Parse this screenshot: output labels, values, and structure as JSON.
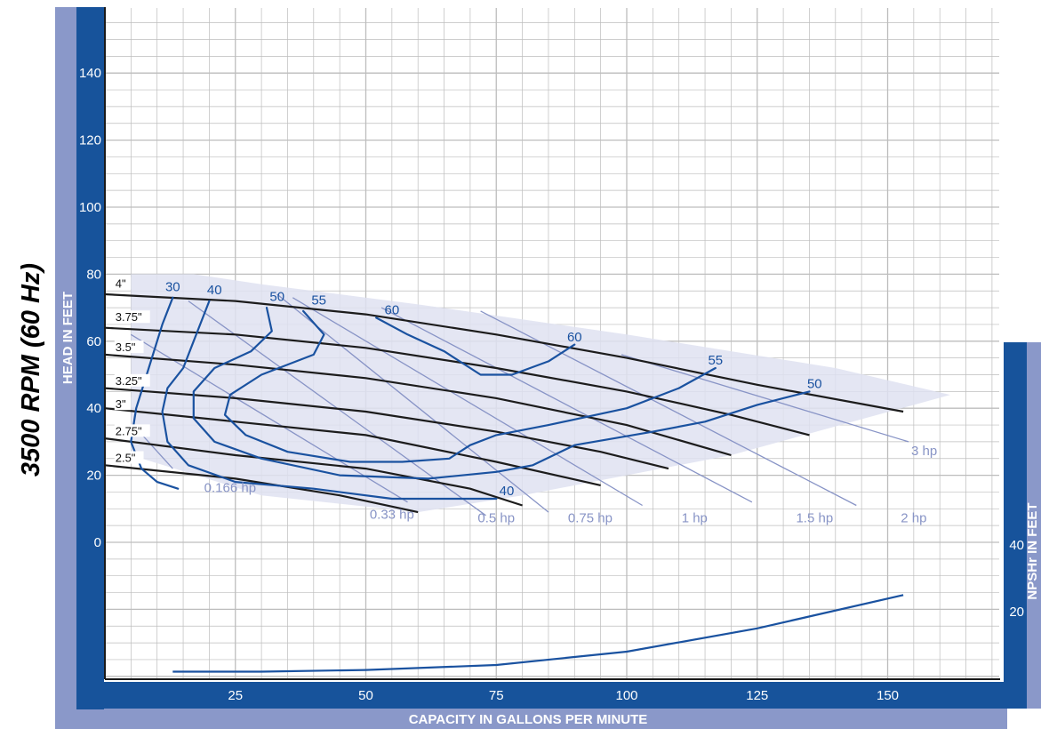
{
  "page": {
    "side_title": "3500 RPM (60 Hz)",
    "y_axis_label": "HEAD IN FEET",
    "x_axis_label": "CAPACITY IN GALLONS PER MINUTE",
    "npsh_axis_label": "NPSHr IN FEET",
    "colors": {
      "frame_dark": "#17539b",
      "frame_light": "#8a98c9",
      "curve_blue": "#1a52a0",
      "hp_line": "#8894c6",
      "region_fill": "#dfe2f1",
      "impeller": "#1c1c1c",
      "grid": "#bdbdbd"
    }
  },
  "chart_data": {
    "type": "line",
    "title": "3500 RPM (60 Hz)",
    "xlabel": "CAPACITY IN GALLONS PER MINUTE",
    "ylabel": "HEAD IN FEET",
    "xlim": [
      0,
      170
    ],
    "ylim": [
      -60,
      160
    ],
    "x_ticks": [
      "25",
      "50",
      "75",
      "100",
      "125",
      "150"
    ],
    "x_tick_values": [
      25,
      50,
      75,
      100,
      125,
      150
    ],
    "y_ticks": [
      "0",
      "20",
      "40",
      "60",
      "80",
      "100",
      "120",
      "140"
    ],
    "y_tick_values": [
      0,
      20,
      40,
      60,
      80,
      100,
      120,
      140
    ],
    "grid": true,
    "operating_region": [
      [
        5,
        80
      ],
      [
        17,
        80
      ],
      [
        30,
        77
      ],
      [
        60,
        71
      ],
      [
        100,
        62
      ],
      [
        140,
        52
      ],
      [
        162,
        44
      ],
      [
        120,
        26
      ],
      [
        80,
        14
      ],
      [
        60,
        9
      ],
      [
        30,
        14
      ],
      [
        5,
        26
      ]
    ],
    "impeller_curves": [
      {
        "name": "4\"",
        "points": [
          [
            0,
            74
          ],
          [
            25,
            72
          ],
          [
            50,
            68
          ],
          [
            75,
            62
          ],
          [
            100,
            55
          ],
          [
            125,
            47
          ],
          [
            153,
            39
          ]
        ]
      },
      {
        "name": "3.75\"",
        "points": [
          [
            0,
            64
          ],
          [
            25,
            62
          ],
          [
            50,
            58
          ],
          [
            75,
            52
          ],
          [
            100,
            45
          ],
          [
            120,
            38
          ],
          [
            135,
            32
          ]
        ]
      },
      {
        "name": "3.5\"",
        "points": [
          [
            0,
            56
          ],
          [
            25,
            53
          ],
          [
            50,
            49
          ],
          [
            75,
            43
          ],
          [
            100,
            35
          ],
          [
            120,
            26
          ]
        ]
      },
      {
        "name": "3.25\"",
        "points": [
          [
            0,
            46
          ],
          [
            25,
            43
          ],
          [
            50,
            39
          ],
          [
            75,
            33
          ],
          [
            95,
            27
          ],
          [
            108,
            22
          ]
        ]
      },
      {
        "name": "3\"",
        "points": [
          [
            0,
            40
          ],
          [
            25,
            36
          ],
          [
            50,
            32
          ],
          [
            75,
            24
          ],
          [
            95,
            17
          ]
        ]
      },
      {
        "name": "2.75\"",
        "points": [
          [
            0,
            31
          ],
          [
            25,
            26
          ],
          [
            50,
            22
          ],
          [
            70,
            16
          ],
          [
            80,
            11
          ]
        ]
      },
      {
        "name": "2.5\"",
        "points": [
          [
            0,
            23
          ],
          [
            25,
            19
          ],
          [
            45,
            14
          ],
          [
            60,
            9
          ]
        ]
      }
    ],
    "efficiency_curves": [
      {
        "name": "30",
        "points": [
          [
            13,
            73
          ],
          [
            11,
            65
          ],
          [
            8,
            50
          ],
          [
            6,
            40
          ],
          [
            5,
            30
          ],
          [
            7,
            22
          ],
          [
            10,
            18
          ],
          [
            14,
            16
          ]
        ]
      },
      {
        "name": "40",
        "points": [
          [
            20,
            72
          ],
          [
            17,
            60
          ],
          [
            15,
            52
          ],
          [
            12,
            46
          ],
          [
            11,
            39
          ],
          [
            12,
            30
          ],
          [
            16,
            23
          ],
          [
            25,
            18
          ],
          [
            40,
            16
          ],
          [
            55,
            13
          ],
          [
            75,
            13
          ]
        ]
      },
      {
        "name": "50",
        "points": [
          [
            31,
            70
          ],
          [
            32,
            63
          ],
          [
            28,
            57
          ],
          [
            21,
            52
          ],
          [
            17,
            45
          ],
          [
            17,
            37
          ],
          [
            21,
            30
          ],
          [
            30,
            25
          ],
          [
            45,
            20
          ],
          [
            62,
            19
          ],
          [
            75,
            21
          ],
          [
            82,
            23
          ],
          [
            90,
            29
          ],
          [
            105,
            33
          ],
          [
            115,
            36
          ],
          [
            125,
            41
          ],
          [
            135,
            45
          ]
        ]
      },
      {
        "name": "55",
        "points": [
          [
            38,
            69
          ],
          [
            42,
            62
          ],
          [
            40,
            56
          ],
          [
            30,
            50
          ],
          [
            24,
            44
          ],
          [
            23,
            38
          ],
          [
            27,
            32
          ],
          [
            35,
            27
          ],
          [
            47,
            24
          ],
          [
            57,
            24
          ],
          [
            66,
            25
          ],
          [
            70,
            29
          ],
          [
            75,
            32
          ],
          [
            85,
            35
          ],
          [
            100,
            40
          ],
          [
            110,
            46
          ],
          [
            117,
            52
          ]
        ]
      },
      {
        "name": "60",
        "points": [
          [
            52,
            67
          ],
          [
            58,
            62
          ],
          [
            65,
            57
          ],
          [
            72,
            50
          ],
          [
            78,
            50
          ],
          [
            85,
            54
          ],
          [
            90,
            59
          ]
        ]
      }
    ],
    "efficiency_labels": [
      {
        "text": "30",
        "x": 13,
        "y": 75
      },
      {
        "text": "40",
        "x": 21,
        "y": 74
      },
      {
        "text": "50",
        "x": 33,
        "y": 72
      },
      {
        "text": "55",
        "x": 41,
        "y": 71
      },
      {
        "text": "60",
        "x": 55,
        "y": 68
      },
      {
        "text": "60",
        "x": 90,
        "y": 60
      },
      {
        "text": "55",
        "x": 117,
        "y": 53
      },
      {
        "text": "50",
        "x": 136,
        "y": 46
      },
      {
        "text": "40",
        "x": 77,
        "y": 14
      }
    ],
    "impeller_labels": [
      {
        "text": "4\"",
        "x": 2,
        "y": 76
      },
      {
        "text": "3.75\"",
        "x": 2,
        "y": 66
      },
      {
        "text": "3.5\"",
        "x": 2,
        "y": 57
      },
      {
        "text": "3.25\"",
        "x": 2,
        "y": 47
      },
      {
        "text": "3\"",
        "x": 2,
        "y": 40
      },
      {
        "text": "2.75\"",
        "x": 2,
        "y": 32
      },
      {
        "text": "2.5\"",
        "x": 2,
        "y": 24
      }
    ],
    "horsepower_lines": [
      {
        "name": "0.166 hp",
        "points": [
          [
            13,
            22
          ],
          [
            6,
            34
          ]
        ],
        "label": [
          24,
          15
        ]
      },
      {
        "name": "0.33 hp",
        "points": [
          [
            58,
            12
          ],
          [
            5,
            62
          ]
        ],
        "label": [
          55,
          7
        ]
      },
      {
        "name": "0.5 hp",
        "points": [
          [
            73,
            8
          ],
          [
            16,
            72
          ]
        ],
        "label": [
          75,
          6
        ]
      },
      {
        "name": "0.75 hp",
        "points": [
          [
            85,
            9
          ],
          [
            33,
            74
          ]
        ],
        "label": [
          93,
          6
        ]
      },
      {
        "name": "1 hp",
        "points": [
          [
            103,
            11
          ],
          [
            36,
            73
          ]
        ],
        "label": [
          113,
          6
        ]
      },
      {
        "name": "1.5 hp",
        "points": [
          [
            124,
            12
          ],
          [
            53,
            70
          ]
        ],
        "label": [
          136,
          6
        ]
      },
      {
        "name": "2 hp",
        "points": [
          [
            144,
            11
          ],
          [
            72,
            69
          ]
        ],
        "label": [
          155,
          6
        ]
      },
      {
        "name": "3 hp",
        "points": [
          [
            154,
            30
          ],
          [
            99,
            56
          ]
        ],
        "label": [
          157,
          26
        ]
      }
    ],
    "npsh_axis": {
      "label": "NPSHr IN FEET",
      "ticks": [
        "20",
        "40"
      ],
      "tick_values": [
        20,
        40
      ]
    },
    "npsh_curve": {
      "npsh_ft": [
        [
          13,
          2
        ],
        [
          30,
          2
        ],
        [
          50,
          2.5
        ],
        [
          75,
          4
        ],
        [
          100,
          8
        ],
        [
          125,
          15
        ],
        [
          153,
          25
        ]
      ]
    }
  }
}
